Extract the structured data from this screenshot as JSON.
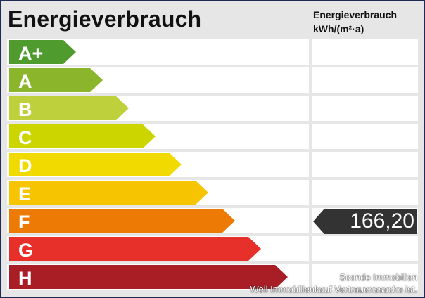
{
  "header": {
    "title": "Energieverbrauch",
    "unit_label": "Energieverbrauch",
    "unit": "kWh/(m²·a)"
  },
  "classes": [
    {
      "label": "A+",
      "color": "#4f9b2e"
    },
    {
      "label": "A",
      "color": "#8bb62b"
    },
    {
      "label": "B",
      "color": "#bed13c"
    },
    {
      "label": "C",
      "color": "#cdd500"
    },
    {
      "label": "D",
      "color": "#f0da00"
    },
    {
      "label": "E",
      "color": "#f6c400"
    },
    {
      "label": "F",
      "color": "#ee7a06"
    },
    {
      "label": "G",
      "color": "#e8302a"
    },
    {
      "label": "H",
      "color": "#a81e24"
    }
  ],
  "indicator": {
    "value": "166,20",
    "class": "F",
    "color": "#333333"
  },
  "footer": {
    "line1": "Scondo Immobilien",
    "line2": "Weil Immobilienkauf Vertrauenssache ist."
  }
}
